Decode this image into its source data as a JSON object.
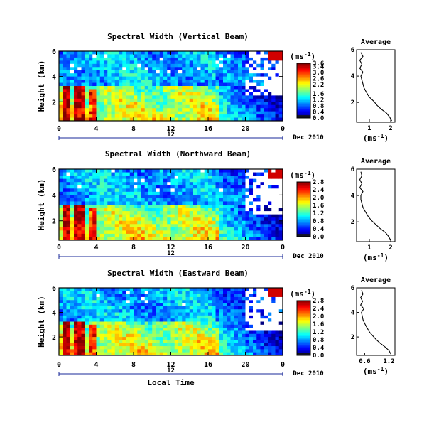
{
  "chart_data": [
    {
      "type": "heatmap",
      "title": "Spectral Width (Vertical Beam)",
      "ylabel": "Height (km)",
      "xticks": [
        "0",
        "4",
        "8",
        "12",
        "16",
        "20",
        "0"
      ],
      "yticks": [
        "2",
        "4",
        "6"
      ],
      "ylim": [
        0.5,
        6
      ],
      "xlim": [
        0,
        24
      ],
      "date_marker": "12",
      "date_text": "Dec 2010",
      "colorbar": {
        "unit": "(ms",
        "unit_exp": "-1",
        "unit_close": ")",
        "ticks": [
          "3.6",
          "3.4",
          "3.0",
          "2.6",
          "2.2",
          "1.6",
          "1.2",
          "0.8",
          "0.4",
          "0.0"
        ],
        "vmin": 0,
        "vmax": 3.6
      },
      "average": {
        "title": "Average",
        "xlabel": "(ms",
        "xlabel_exp": "-1",
        "xlabel_close": ")",
        "xticks": [
          "1",
          "2"
        ],
        "xlim": [
          0.4,
          2.2
        ],
        "yticks": [
          "2",
          "4",
          "6"
        ],
        "profile": [
          [
            2.05,
            0.6
          ],
          [
            1.95,
            0.9
          ],
          [
            1.8,
            1.2
          ],
          [
            1.55,
            1.5
          ],
          [
            1.35,
            1.8
          ],
          [
            1.2,
            2.1
          ],
          [
            1.0,
            2.4
          ],
          [
            0.85,
            2.8
          ],
          [
            0.75,
            3.1
          ],
          [
            0.7,
            3.4
          ],
          [
            0.65,
            3.7
          ],
          [
            0.6,
            4.0
          ],
          [
            0.7,
            4.3
          ],
          [
            0.55,
            4.6
          ],
          [
            0.65,
            4.9
          ],
          [
            0.55,
            5.2
          ],
          [
            0.7,
            5.5
          ],
          [
            0.6,
            5.8
          ]
        ]
      }
    },
    {
      "type": "heatmap",
      "title": "Spectral Width (Northward Beam)",
      "ylabel": "Height (km)",
      "xticks": [
        "0",
        "4",
        "8",
        "12",
        "16",
        "20",
        "0"
      ],
      "yticks": [
        "2",
        "4",
        "6"
      ],
      "ylim": [
        0.5,
        6
      ],
      "xlim": [
        0,
        24
      ],
      "date_marker": "12",
      "date_text": "Dec 2010",
      "colorbar": {
        "unit": "(ms",
        "unit_exp": "-1",
        "unit_close": ")",
        "ticks": [
          "2.8",
          "2.4",
          "2.0",
          "1.6",
          "1.2",
          "0.8",
          "0.4",
          "0.0"
        ],
        "vmin": 0,
        "vmax": 2.8
      },
      "average": {
        "title": "Average",
        "xlabel": "(ms",
        "xlabel_exp": "-1",
        "xlabel_close": ")",
        "xticks": [
          "1",
          "2"
        ],
        "xlim": [
          0.4,
          2.2
        ],
        "yticks": [
          "2",
          "4",
          "6"
        ],
        "profile": [
          [
            2.0,
            0.6
          ],
          [
            1.9,
            0.9
          ],
          [
            1.75,
            1.2
          ],
          [
            1.5,
            1.5
          ],
          [
            1.3,
            1.8
          ],
          [
            1.1,
            2.1
          ],
          [
            0.95,
            2.4
          ],
          [
            0.8,
            2.8
          ],
          [
            0.7,
            3.1
          ],
          [
            0.65,
            3.4
          ],
          [
            0.6,
            3.7
          ],
          [
            0.6,
            4.0
          ],
          [
            0.7,
            4.3
          ],
          [
            0.55,
            4.6
          ],
          [
            0.65,
            4.9
          ],
          [
            0.55,
            5.2
          ],
          [
            0.65,
            5.5
          ],
          [
            0.6,
            5.8
          ]
        ]
      }
    },
    {
      "type": "heatmap",
      "title": "Spectral Width (Eastward Beam)",
      "ylabel": "Height (km)",
      "xlabel": "Local Time",
      "xticks": [
        "0",
        "4",
        "8",
        "12",
        "16",
        "20",
        "0"
      ],
      "yticks": [
        "2",
        "4",
        "6"
      ],
      "ylim": [
        0.5,
        6
      ],
      "xlim": [
        0,
        24
      ],
      "date_marker": "12",
      "date_text": "Dec 2010",
      "colorbar": {
        "unit": "(ms",
        "unit_exp": "-1",
        "unit_close": ")",
        "ticks": [
          "2.8",
          "2.4",
          "2.0",
          "1.6",
          "1.2",
          "0.8",
          "0.4",
          "0.0"
        ],
        "vmin": 0,
        "vmax": 2.8
      },
      "average": {
        "title": "Average",
        "xlabel": "(ms",
        "xlabel_exp": "-1",
        "xlabel_close": ")",
        "xticks": [
          "0.6",
          "1.2"
        ],
        "xlim": [
          0.4,
          1.35
        ],
        "yticks": [
          "2",
          "4",
          "6"
        ],
        "profile": [
          [
            1.25,
            0.6
          ],
          [
            1.2,
            0.9
          ],
          [
            1.1,
            1.2
          ],
          [
            0.98,
            1.5
          ],
          [
            0.88,
            1.8
          ],
          [
            0.8,
            2.1
          ],
          [
            0.72,
            2.4
          ],
          [
            0.65,
            2.8
          ],
          [
            0.6,
            3.1
          ],
          [
            0.56,
            3.4
          ],
          [
            0.54,
            3.7
          ],
          [
            0.52,
            4.0
          ],
          [
            0.58,
            4.3
          ],
          [
            0.5,
            4.6
          ],
          [
            0.55,
            4.9
          ],
          [
            0.5,
            5.2
          ],
          [
            0.56,
            5.5
          ],
          [
            0.52,
            5.8
          ]
        ]
      }
    }
  ]
}
